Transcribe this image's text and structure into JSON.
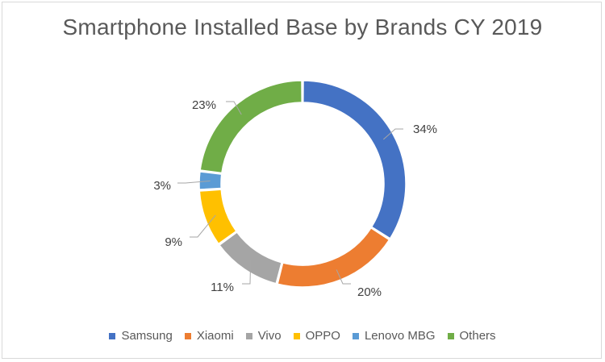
{
  "chart_data": {
    "type": "pie",
    "title": "Smartphone Installed Base by Brands CY 2019",
    "donut": true,
    "legend_position": "bottom",
    "slices": [
      {
        "name": "Samsung",
        "value": 34,
        "label": "34%",
        "color": "#4472C4"
      },
      {
        "name": "Xiaomi",
        "value": 20,
        "label": "20%",
        "color": "#ED7D31"
      },
      {
        "name": "Vivo",
        "value": 11,
        "label": "11%",
        "color": "#A5A5A5"
      },
      {
        "name": "OPPO",
        "value": 9,
        "label": "9%",
        "color": "#FFC000"
      },
      {
        "name": "Lenovo MBG",
        "value": 3,
        "label": "3%",
        "color": "#5B9BD5"
      },
      {
        "name": "Others",
        "value": 23,
        "label": "23%",
        "color": "#70AD47"
      }
    ]
  }
}
